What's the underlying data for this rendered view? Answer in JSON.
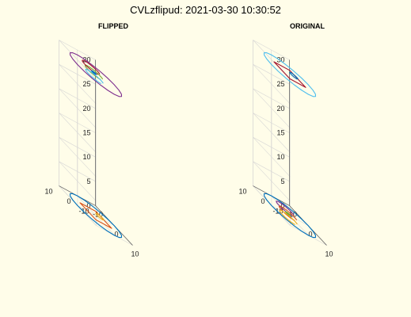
{
  "figure": {
    "suptitle": "CVLzflipud: 2021-03-30 10:30:52",
    "background": "#fffde9"
  },
  "chart_data": [
    {
      "type": "line3d",
      "title": "FLIPPED",
      "xlim": [
        -10,
        10
      ],
      "ylim": [
        -10,
        10
      ],
      "zlim": [
        0,
        30
      ],
      "xticks": [
        -10,
        0,
        10
      ],
      "yticks": [
        -10,
        0,
        10
      ],
      "zticks": [
        0,
        5,
        10,
        15,
        20,
        25,
        30
      ],
      "grid": true,
      "series": [
        {
          "shape": "circle",
          "color": "#0072bd",
          "center": [
            0,
            0
          ],
          "z": 0,
          "radius": 10,
          "points": 20
        },
        {
          "shape": "square",
          "color": "#d95319",
          "center": [
            0,
            0
          ],
          "z": 0,
          "half_size": 4.3
        },
        {
          "shape": "arc",
          "color": "#edb120",
          "center": [
            -1,
            -3.3
          ],
          "z": 0,
          "radius": 1.6,
          "sweep_deg": 300
        },
        {
          "shape": "circle",
          "color": "#7e2f8e",
          "center": [
            0,
            0
          ],
          "z": 29,
          "radius": 10,
          "points": 20
        },
        {
          "shape": "arc",
          "color": "#77ac30",
          "center": [
            -1,
            0
          ],
          "z": 29,
          "radius": 3.4,
          "sweep_deg": 300
        },
        {
          "shape": "arc",
          "color": "#4dbeee",
          "center": [
            3,
            3.8
          ],
          "z": 29,
          "radius": 3.4,
          "sweep_deg": 300
        },
        {
          "shape": "arc",
          "color": "#a2142f",
          "center": [
            -4.5,
            -2
          ],
          "z": 29,
          "radius": 3.4,
          "sweep_deg": 300
        },
        {
          "shape": "arc",
          "color": "#0072bd",
          "center": [
            -1,
            0
          ],
          "z": 29,
          "radius": 0.9,
          "sweep_deg": 300
        }
      ]
    },
    {
      "type": "line3d",
      "title": "ORIGINAL",
      "xlim": [
        -10,
        10
      ],
      "ylim": [
        -10,
        10
      ],
      "zlim": [
        0,
        30
      ],
      "xticks": [
        -10,
        0,
        10
      ],
      "yticks": [
        -10,
        0,
        10
      ],
      "zticks": [
        0,
        5,
        10,
        15,
        20,
        25,
        30
      ],
      "grid": true,
      "series": [
        {
          "shape": "circle",
          "color": "#0072bd",
          "center": [
            0,
            0
          ],
          "z": 0,
          "radius": 10,
          "points": 20
        },
        {
          "shape": "arc",
          "color": "#7e2f8e",
          "center": [
            -4.5,
            -2
          ],
          "z": 0,
          "radius": 3.4,
          "sweep_deg": 300
        },
        {
          "shape": "arc",
          "color": "#d95319",
          "center": [
            -1,
            0
          ],
          "z": 0,
          "radius": 3.4,
          "sweep_deg": 300
        },
        {
          "shape": "arc",
          "color": "#edb120",
          "center": [
            3,
            3.8
          ],
          "z": 0,
          "radius": 3.4,
          "sweep_deg": 300
        },
        {
          "shape": "arc",
          "color": "#77ac30",
          "center": [
            -1,
            0
          ],
          "z": 0,
          "radius": 0.9,
          "sweep_deg": 300
        },
        {
          "shape": "circle",
          "color": "#4dbeee",
          "center": [
            0,
            0
          ],
          "z": 29,
          "radius": 10,
          "points": 20
        },
        {
          "shape": "square",
          "color": "#a2142f",
          "center": [
            0,
            0
          ],
          "z": 29,
          "half_size": 4.3
        },
        {
          "shape": "arc",
          "color": "#0072bd",
          "center": [
            -1,
            -3.3
          ],
          "z": 29,
          "radius": 1.6,
          "sweep_deg": 300
        }
      ]
    }
  ]
}
